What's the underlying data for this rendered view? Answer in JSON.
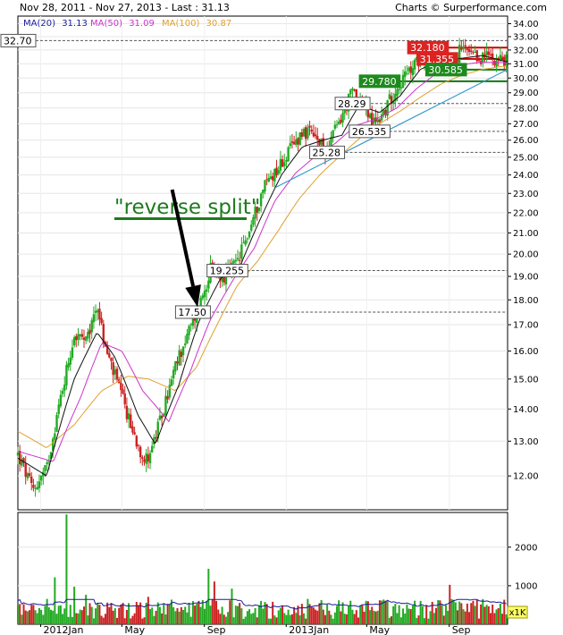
{
  "header": {
    "range_text": "Nov 28, 2011 - Nov 27, 2013 - Last : 31.13",
    "credit": "Charts © Surperformance.com"
  },
  "legend": [
    {
      "label": "MA(20)",
      "value": "31.13",
      "color": "#1a1a99"
    },
    {
      "label": "MA(50)",
      "value": "31.09",
      "color": "#cc33cc"
    },
    {
      "label": "MA(100)",
      "value": "30.87",
      "color": "#e0a030"
    }
  ],
  "annotation": {
    "text": "\"reverse split\"",
    "color": "#1e7a1e"
  },
  "chart_data": [
    {
      "type": "candlestick",
      "title": "",
      "y_ticks": [
        12.0,
        13.0,
        14.0,
        15.0,
        16.0,
        17.0,
        18.0,
        19.0,
        20.0,
        21.0,
        22.0,
        23.0,
        24.0,
        25.0,
        26.0,
        27.0,
        28.0,
        29.0,
        30.0,
        31.0,
        32.0,
        33.0,
        34.0
      ],
      "y_tick_labels": [
        "12.00",
        "13.00",
        "14.00",
        "15.00",
        "16.00",
        "17.00",
        "18.00",
        "19.00",
        "20.00",
        "21.00",
        "22.00",
        "23.00",
        "24.00",
        "25.00",
        "26.00",
        "27.00",
        "28.00",
        "29.00",
        "30.00",
        "31.00",
        "32.00",
        "33.00",
        "34.00"
      ],
      "ylim": [
        11.1,
        34.6
      ],
      "y_scale": "log",
      "x_ticks": [
        "2012Jan",
        "May",
        "Sep",
        "2013Jan",
        "May",
        "Sep"
      ],
      "x_range": [
        "2011-11-28",
        "2013-11-27"
      ],
      "price_path": [
        [
          "2011-11-28",
          12.6
        ],
        [
          "2011-12-20",
          11.6
        ],
        [
          "2012-01-10",
          12.2
        ],
        [
          "2012-02-01",
          14.5
        ],
        [
          "2012-02-20",
          16.6
        ],
        [
          "2012-03-10",
          16.3
        ],
        [
          "2012-03-25",
          17.9
        ],
        [
          "2012-04-05",
          16.2
        ],
        [
          "2012-04-25",
          14.8
        ],
        [
          "2012-05-15",
          13.4
        ],
        [
          "2012-06-05",
          12.4
        ],
        [
          "2012-06-20",
          13.1
        ],
        [
          "2012-07-05",
          14.2
        ],
        [
          "2012-07-25",
          15.8
        ],
        [
          "2012-08-10",
          16.8
        ],
        [
          "2012-08-25",
          17.8
        ],
        [
          "2012-09-10",
          19.3
        ],
        [
          "2012-10-01",
          19.0
        ],
        [
          "2012-10-20",
          19.6
        ],
        [
          "2012-11-10",
          21.4
        ],
        [
          "2012-12-01",
          23.6
        ],
        [
          "2012-12-20",
          24.4
        ],
        [
          "2013-01-10",
          25.6
        ],
        [
          "2013-01-25",
          26.6
        ],
        [
          "2013-02-10",
          26.2
        ],
        [
          "2013-03-01",
          25.4
        ],
        [
          "2013-03-20",
          27.0
        ],
        [
          "2013-04-10",
          29.1
        ],
        [
          "2013-04-25",
          28.3
        ],
        [
          "2013-05-10",
          27.0
        ],
        [
          "2013-05-25",
          27.6
        ],
        [
          "2013-06-15",
          29.4
        ],
        [
          "2013-07-05",
          30.5
        ],
        [
          "2013-07-25",
          31.8
        ],
        [
          "2013-08-15",
          31.2
        ],
        [
          "2013-09-01",
          30.7
        ],
        [
          "2013-09-20",
          32.1
        ],
        [
          "2013-10-10",
          31.3
        ],
        [
          "2013-10-30",
          31.6
        ],
        [
          "2013-11-27",
          31.13
        ]
      ],
      "ma20_path": [
        [
          "2011-11-28",
          12.5
        ],
        [
          "2012-01-10",
          12.0
        ],
        [
          "2012-02-20",
          15.0
        ],
        [
          "2012-03-25",
          16.7
        ],
        [
          "2012-04-20",
          15.8
        ],
        [
          "2012-05-25",
          13.8
        ],
        [
          "2012-06-20",
          12.9
        ],
        [
          "2012-07-25",
          14.8
        ],
        [
          "2012-08-25",
          17.2
        ],
        [
          "2012-09-25",
          18.9
        ],
        [
          "2012-10-25",
          19.5
        ],
        [
          "2012-11-25",
          21.8
        ],
        [
          "2012-12-25",
          24.0
        ],
        [
          "2013-01-25",
          25.6
        ],
        [
          "2013-02-25",
          26.0
        ],
        [
          "2013-03-25",
          26.3
        ],
        [
          "2013-04-20",
          28.2
        ],
        [
          "2013-05-20",
          27.7
        ],
        [
          "2013-06-20",
          28.8
        ],
        [
          "2013-07-20",
          30.6
        ],
        [
          "2013-08-20",
          31.3
        ],
        [
          "2013-09-20",
          31.4
        ],
        [
          "2013-10-20",
          31.6
        ],
        [
          "2013-11-27",
          31.13
        ]
      ],
      "ma50_path": [
        [
          "2011-11-28",
          12.7
        ],
        [
          "2012-01-20",
          12.4
        ],
        [
          "2012-03-01",
          14.4
        ],
        [
          "2012-04-01",
          16.3
        ],
        [
          "2012-05-01",
          16.0
        ],
        [
          "2012-06-01",
          14.6
        ],
        [
          "2012-07-10",
          13.6
        ],
        [
          "2012-08-10",
          15.2
        ],
        [
          "2012-09-10",
          17.2
        ],
        [
          "2012-10-15",
          18.9
        ],
        [
          "2012-11-15",
          20.3
        ],
        [
          "2012-12-15",
          22.6
        ],
        [
          "2013-01-15",
          24.1
        ],
        [
          "2013-02-15",
          25.1
        ],
        [
          "2013-03-15",
          25.8
        ],
        [
          "2013-04-15",
          26.9
        ],
        [
          "2013-05-15",
          27.3
        ],
        [
          "2013-06-15",
          28.0
        ],
        [
          "2013-07-15",
          29.3
        ],
        [
          "2013-08-15",
          30.4
        ],
        [
          "2013-09-15",
          30.9
        ],
        [
          "2013-10-15",
          31.1
        ],
        [
          "2013-11-27",
          31.09
        ]
      ],
      "ma100_path": [
        [
          "2011-11-28",
          13.3
        ],
        [
          "2012-01-10",
          12.8
        ],
        [
          "2012-02-20",
          13.5
        ],
        [
          "2012-04-01",
          14.6
        ],
        [
          "2012-05-10",
          15.1
        ],
        [
          "2012-06-10",
          15.0
        ],
        [
          "2012-07-20",
          14.6
        ],
        [
          "2012-08-20",
          15.4
        ],
        [
          "2012-09-20",
          17.0
        ],
        [
          "2012-10-20",
          18.6
        ],
        [
          "2012-11-20",
          19.7
        ],
        [
          "2012-12-20",
          21.1
        ],
        [
          "2013-01-20",
          22.7
        ],
        [
          "2013-02-20",
          24.0
        ],
        [
          "2013-03-20",
          25.0
        ],
        [
          "2013-04-20",
          26.1
        ],
        [
          "2013-05-20",
          27.0
        ],
        [
          "2013-06-20",
          27.8
        ],
        [
          "2013-07-20",
          28.7
        ],
        [
          "2013-08-20",
          29.6
        ],
        [
          "2013-09-20",
          30.2
        ],
        [
          "2013-10-20",
          30.6
        ],
        [
          "2013-11-27",
          30.87
        ]
      ],
      "trendlines": [
        {
          "from": [
            "2012-12-15",
            23.3
          ],
          "to": [
            "2013-11-27",
            30.6
          ],
          "color": "#3399cc"
        }
      ],
      "levels": [
        {
          "value": 32.7,
          "label": "32.70",
          "style": "dashed",
          "label_color": "#000000",
          "label_bg": "#ffffff",
          "label_side": "left"
        },
        {
          "value": 32.18,
          "label": "32.180",
          "style": "solid",
          "color": "#cc0000",
          "label_color": "#ffffff",
          "label_bg": "#dd2222",
          "label_at": "2013-07-01",
          "line_from": "2013-07-01"
        },
        {
          "value": 31.355,
          "label": "31.355",
          "style": "solid",
          "color": "#cc0000",
          "label_color": "#ffffff",
          "label_bg": "#dd2222",
          "label_at": "2013-07-15",
          "line_from": "2013-08-10"
        },
        {
          "value": 30.585,
          "label": "30.585",
          "style": "solid",
          "color": "#117711",
          "label_color": "#ffffff",
          "label_bg": "#1e8a1e",
          "label_at": "2013-07-28",
          "line_from": "2013-08-25"
        },
        {
          "value": 29.78,
          "label": "29.780",
          "style": "solid",
          "color": "#117711",
          "label_color": "#ffffff",
          "label_bg": "#1e8a1e",
          "label_at": "2013-04-20",
          "line_from": "2013-06-15"
        },
        {
          "value": 28.29,
          "label": "28.29",
          "style": "dashed",
          "label_color": "#000000",
          "label_bg": "#ffffff",
          "label_at": "2013-03-15",
          "line_from": "2013-03-15"
        },
        {
          "value": 26.535,
          "label": "26.535",
          "style": "dashed",
          "label_color": "#000000",
          "label_bg": "#ffffff",
          "label_at": "2013-04-05",
          "line_from": "2013-04-05"
        },
        {
          "value": 25.28,
          "label": "25.28",
          "style": "dashed",
          "label_color": "#000000",
          "label_bg": "#ffffff",
          "label_at": "2013-02-05",
          "line_from": "2013-02-05"
        },
        {
          "value": 19.255,
          "label": "19.255",
          "style": "dashed",
          "label_color": "#000000",
          "label_bg": "#ffffff",
          "label_at": "2012-09-05",
          "line_from": "2012-09-05"
        },
        {
          "value": 17.5,
          "label": "17.50",
          "style": "dashed",
          "label_color": "#000000",
          "label_bg": "#ffffff",
          "label_at": "2012-07-20",
          "line_from": "2012-08-10"
        }
      ],
      "arrow": {
        "from": [
          "2012-07-15",
          23.2
        ],
        "to": [
          "2012-08-22",
          17.7
        ]
      }
    },
    {
      "type": "bar",
      "title": "",
      "y_ticks": [
        1000,
        2000
      ],
      "y_tick_labels": [
        "1000",
        "2000"
      ],
      "ylim": [
        0,
        2900
      ],
      "unit_label": "x1K",
      "volume_baseline": 400,
      "volume_peak": {
        "date": "2012-02-08",
        "value": 2850
      },
      "volume_ma_level": 560
    }
  ]
}
